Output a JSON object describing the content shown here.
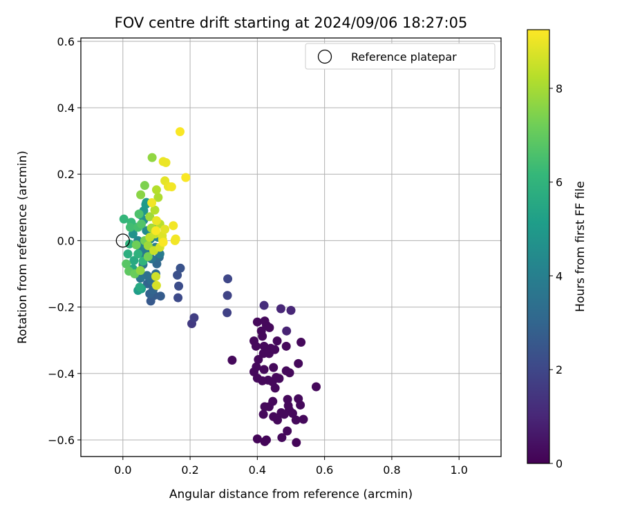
{
  "chart_data": {
    "type": "scatter",
    "title": "FOV centre drift starting at 2024/09/06 18:27:05",
    "xlabel": "Angular distance from reference (arcmin)",
    "ylabel": "Rotation from reference (arcmin)",
    "xlim": [
      -0.125,
      1.125
    ],
    "ylim": [
      -0.65,
      0.61
    ],
    "xticks": [
      0.0,
      0.2,
      0.4,
      0.6,
      0.8,
      1.0
    ],
    "xtick_labels": [
      "0.0",
      "0.2",
      "0.4",
      "0.6",
      "0.8",
      "1.0"
    ],
    "yticks": [
      -0.6,
      -0.4,
      -0.2,
      0.0,
      0.2,
      0.4,
      0.6
    ],
    "ytick_labels": [
      "−0.6",
      "−0.4",
      "−0.2",
      "0.0",
      "0.2",
      "0.4",
      "0.6"
    ],
    "grid": true,
    "legend": {
      "placement": "upper right",
      "entries": [
        "Reference platepar"
      ]
    },
    "reference_point": {
      "x": 0.0,
      "y": 0.0
    },
    "colorbar": {
      "label": "Hours from first FF file",
      "colormap": "viridis",
      "range": [
        0,
        9.25
      ],
      "ticks": [
        0,
        2,
        4,
        6,
        8
      ],
      "tick_labels": [
        "0",
        "2",
        "4",
        "6",
        "8"
      ]
    },
    "points": [
      [
        0.4,
        -0.597,
        0.1
      ],
      [
        0.427,
        -0.6,
        0.1
      ],
      [
        0.516,
        -0.608,
        0.1
      ],
      [
        0.422,
        -0.605,
        0.1
      ],
      [
        0.473,
        -0.593,
        0.2
      ],
      [
        0.489,
        -0.573,
        0.2
      ],
      [
        0.46,
        -0.54,
        0.2
      ],
      [
        0.515,
        -0.54,
        0.2
      ],
      [
        0.448,
        -0.53,
        0.2
      ],
      [
        0.495,
        -0.51,
        0.2
      ],
      [
        0.471,
        -0.518,
        0.2
      ],
      [
        0.48,
        -0.523,
        0.2
      ],
      [
        0.537,
        -0.538,
        0.2
      ],
      [
        0.418,
        -0.523,
        0.2
      ],
      [
        0.422,
        -0.5,
        0.2
      ],
      [
        0.435,
        -0.5,
        0.2
      ],
      [
        0.446,
        -0.484,
        0.2
      ],
      [
        0.49,
        -0.478,
        0.2
      ],
      [
        0.492,
        -0.497,
        0.2
      ],
      [
        0.505,
        -0.52,
        0.2
      ],
      [
        0.522,
        -0.476,
        0.2
      ],
      [
        0.528,
        -0.495,
        0.2
      ],
      [
        0.575,
        -0.44,
        0.2
      ],
      [
        0.453,
        -0.444,
        0.2
      ],
      [
        0.445,
        -0.425,
        0.2
      ],
      [
        0.465,
        -0.415,
        0.2
      ],
      [
        0.432,
        -0.42,
        0.2
      ],
      [
        0.415,
        -0.422,
        0.2
      ],
      [
        0.4,
        -0.414,
        0.2
      ],
      [
        0.39,
        -0.395,
        0.2
      ],
      [
        0.397,
        -0.38,
        0.2
      ],
      [
        0.42,
        -0.388,
        0.2
      ],
      [
        0.448,
        -0.382,
        0.2
      ],
      [
        0.486,
        -0.392,
        0.2
      ],
      [
        0.496,
        -0.398,
        0.2
      ],
      [
        0.456,
        -0.412,
        0.2
      ],
      [
        0.325,
        -0.36,
        0.2
      ],
      [
        0.403,
        -0.358,
        0.2
      ],
      [
        0.418,
        -0.34,
        0.2
      ],
      [
        0.42,
        -0.318,
        0.2
      ],
      [
        0.435,
        -0.34,
        0.2
      ],
      [
        0.44,
        -0.324,
        0.2
      ],
      [
        0.452,
        -0.328,
        0.2
      ],
      [
        0.459,
        -0.302,
        0.2
      ],
      [
        0.486,
        -0.318,
        0.2
      ],
      [
        0.522,
        -0.37,
        0.2
      ],
      [
        0.53,
        -0.306,
        0.2
      ],
      [
        0.39,
        -0.302,
        0.2
      ],
      [
        0.396,
        -0.318,
        0.2
      ],
      [
        0.412,
        -0.272,
        0.2
      ],
      [
        0.415,
        -0.288,
        0.2
      ],
      [
        0.427,
        -0.255,
        0.2
      ],
      [
        0.436,
        -0.262,
        0.2
      ],
      [
        0.4,
        -0.245,
        0.2
      ],
      [
        0.422,
        -0.242,
        0.2
      ],
      [
        0.487,
        -0.272,
        0.9
      ],
      [
        0.47,
        -0.205,
        1.0
      ],
      [
        0.5,
        -0.21,
        1.0
      ],
      [
        0.42,
        -0.195,
        1.2
      ],
      [
        0.205,
        -0.25,
        1.6
      ],
      [
        0.212,
        -0.232,
        1.7
      ],
      [
        0.31,
        -0.217,
        1.8
      ],
      [
        0.311,
        -0.165,
        1.9
      ],
      [
        0.312,
        -0.115,
        2.0
      ],
      [
        0.164,
        -0.172,
        2.1
      ],
      [
        0.166,
        -0.137,
        2.2
      ],
      [
        0.162,
        -0.104,
        2.3
      ],
      [
        0.171,
        -0.083,
        2.4
      ],
      [
        0.083,
        -0.182,
        2.6
      ],
      [
        0.112,
        -0.167,
        2.7
      ],
      [
        0.093,
        -0.165,
        2.7
      ],
      [
        0.08,
        -0.16,
        2.9
      ],
      [
        0.073,
        -0.13,
        3.0
      ],
      [
        0.09,
        -0.148,
        3.0
      ],
      [
        0.101,
        -0.07,
        3.1
      ],
      [
        0.108,
        -0.05,
        3.2
      ],
      [
        0.085,
        -0.12,
        3.3
      ],
      [
        0.098,
        -0.1,
        3.3
      ],
      [
        0.072,
        -0.105,
        3.4
      ],
      [
        0.06,
        -0.072,
        3.5
      ],
      [
        0.052,
        -0.113,
        3.6
      ],
      [
        0.085,
        -0.055,
        3.6
      ],
      [
        0.063,
        -0.04,
        3.7
      ],
      [
        0.075,
        -0.028,
        3.8
      ],
      [
        0.11,
        -0.04,
        3.8
      ],
      [
        0.097,
        -0.02,
        3.9
      ],
      [
        0.052,
        -0.021,
        4.0
      ],
      [
        0.06,
        -0.01,
        4.1
      ],
      [
        0.082,
        0.005,
        4.1
      ],
      [
        0.104,
        0.01,
        4.2
      ],
      [
        0.045,
        0.0,
        4.3
      ],
      [
        0.07,
        0.03,
        4.4
      ],
      [
        0.09,
        0.035,
        4.5
      ],
      [
        0.062,
        0.062,
        4.5
      ],
      [
        0.04,
        0.04,
        4.6
      ],
      [
        0.03,
        0.02,
        4.7
      ],
      [
        0.052,
        0.078,
        4.8
      ],
      [
        0.062,
        0.09,
        4.9
      ],
      [
        0.068,
        0.109,
        5.0
      ],
      [
        0.07,
        0.115,
        5.0
      ],
      [
        0.045,
        -0.15,
        5.1
      ],
      [
        0.055,
        -0.145,
        5.3
      ],
      [
        0.03,
        -0.085,
        5.5
      ],
      [
        0.05,
        -0.14,
        5.6
      ],
      [
        0.033,
        -0.06,
        5.6
      ],
      [
        0.015,
        -0.04,
        5.8
      ],
      [
        0.02,
        -0.01,
        5.9
      ],
      [
        0.045,
        -0.04,
        5.9
      ],
      [
        0.06,
        -0.062,
        6.0
      ],
      [
        0.003,
        0.065,
        6.1
      ],
      [
        0.025,
        0.055,
        6.2
      ],
      [
        0.022,
        0.04,
        6.4
      ],
      [
        0.045,
        0.04,
        6.5
      ],
      [
        0.048,
        0.08,
        6.6
      ],
      [
        0.055,
        0.05,
        6.7
      ],
      [
        0.01,
        -0.07,
        6.8
      ],
      [
        0.018,
        -0.092,
        6.9
      ],
      [
        0.035,
        -0.1,
        7.1
      ],
      [
        0.04,
        -0.013,
        7.2
      ],
      [
        0.065,
        0.0,
        7.3
      ],
      [
        0.075,
        -0.048,
        7.3
      ],
      [
        0.065,
        0.166,
        7.4
      ],
      [
        0.053,
        0.138,
        7.6
      ],
      [
        0.052,
        -0.09,
        7.7
      ],
      [
        0.087,
        0.25,
        7.7
      ],
      [
        0.08,
        0.072,
        7.9
      ],
      [
        0.075,
        -0.015,
        7.9
      ],
      [
        0.085,
        0.038,
        8.0
      ],
      [
        0.105,
        0.13,
        8.1
      ],
      [
        0.1,
        0.153,
        8.2
      ],
      [
        0.095,
        0.092,
        8.2
      ],
      [
        0.11,
        0.05,
        8.3
      ],
      [
        0.08,
        0.01,
        8.4
      ],
      [
        0.095,
        0.02,
        8.5
      ],
      [
        0.092,
        -0.03,
        8.5
      ],
      [
        0.098,
        -0.108,
        8.6
      ],
      [
        0.1,
        -0.135,
        8.7
      ],
      [
        0.11,
        -0.02,
        8.7
      ],
      [
        0.117,
        0.015,
        8.8
      ],
      [
        0.118,
        0.003,
        8.8
      ],
      [
        0.125,
        0.034,
        8.9
      ],
      [
        0.125,
        0.18,
        8.9
      ],
      [
        0.12,
        0.238,
        9.0
      ],
      [
        0.128,
        0.235,
        9.0
      ],
      [
        0.135,
        0.163,
        9.0
      ],
      [
        0.145,
        0.162,
        9.1
      ],
      [
        0.15,
        0.045,
        9.1
      ],
      [
        0.155,
        0.0,
        9.1
      ],
      [
        0.157,
        0.005,
        9.1
      ],
      [
        0.17,
        0.328,
        9.2
      ],
      [
        0.187,
        0.19,
        9.2
      ],
      [
        0.12,
        -0.005,
        9.2
      ],
      [
        0.098,
        0.03,
        9.2
      ],
      [
        0.086,
        0.114,
        9.1
      ],
      [
        0.1,
        0.06,
        9.0
      ]
    ]
  }
}
